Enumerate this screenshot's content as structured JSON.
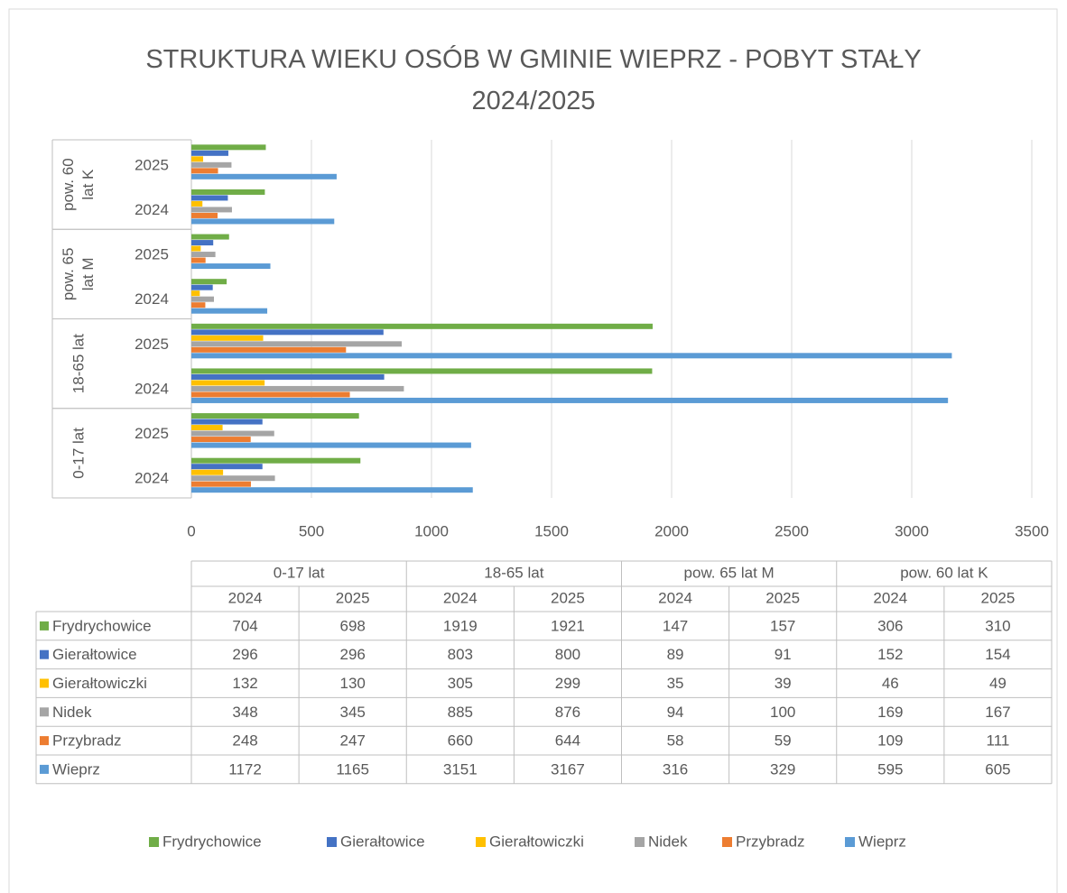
{
  "chart_data": {
    "type": "bar",
    "orientation": "horizontal",
    "title": "STRUKTURA WIEKU OSÓB W GMINIE WIEPRZ - POBYT STAŁY 2024/2025",
    "groups": [
      {
        "name": "0-17 lat",
        "categories": [
          "2024",
          "2025"
        ]
      },
      {
        "name": "18-65 lat",
        "categories": [
          "2024",
          "2025"
        ]
      },
      {
        "name": "pow. 65 lat M",
        "categories": [
          "2024",
          "2025"
        ]
      },
      {
        "name": "pow. 60 lat K",
        "categories": [
          "2024",
          "2025"
        ]
      }
    ],
    "series": [
      {
        "name": "Frydrychowice",
        "color": "#70ad47",
        "values": [
          704,
          698,
          1919,
          1921,
          147,
          157,
          306,
          310
        ]
      },
      {
        "name": "Gierałtowice",
        "color": "#4472c4",
        "values": [
          296,
          296,
          803,
          800,
          89,
          91,
          152,
          154
        ]
      },
      {
        "name": "Gierałtowiczki",
        "color": "#ffc000",
        "values": [
          132,
          130,
          305,
          299,
          35,
          39,
          46,
          49
        ]
      },
      {
        "name": "Nidek",
        "color": "#a5a5a5",
        "values": [
          348,
          345,
          885,
          876,
          94,
          100,
          169,
          167
        ]
      },
      {
        "name": "Przybradz",
        "color": "#ed7d31",
        "values": [
          248,
          247,
          660,
          644,
          58,
          59,
          109,
          111
        ]
      },
      {
        "name": "Wieprz",
        "color": "#5b9bd5",
        "values": [
          1172,
          1165,
          3151,
          3167,
          316,
          329,
          595,
          605
        ]
      }
    ],
    "xlim": [
      0,
      3500
    ],
    "xticks": [
      0,
      500,
      1000,
      1500,
      2000,
      2500,
      3000,
      3500
    ],
    "grid": true,
    "data_table": true,
    "legend": "bottom"
  }
}
